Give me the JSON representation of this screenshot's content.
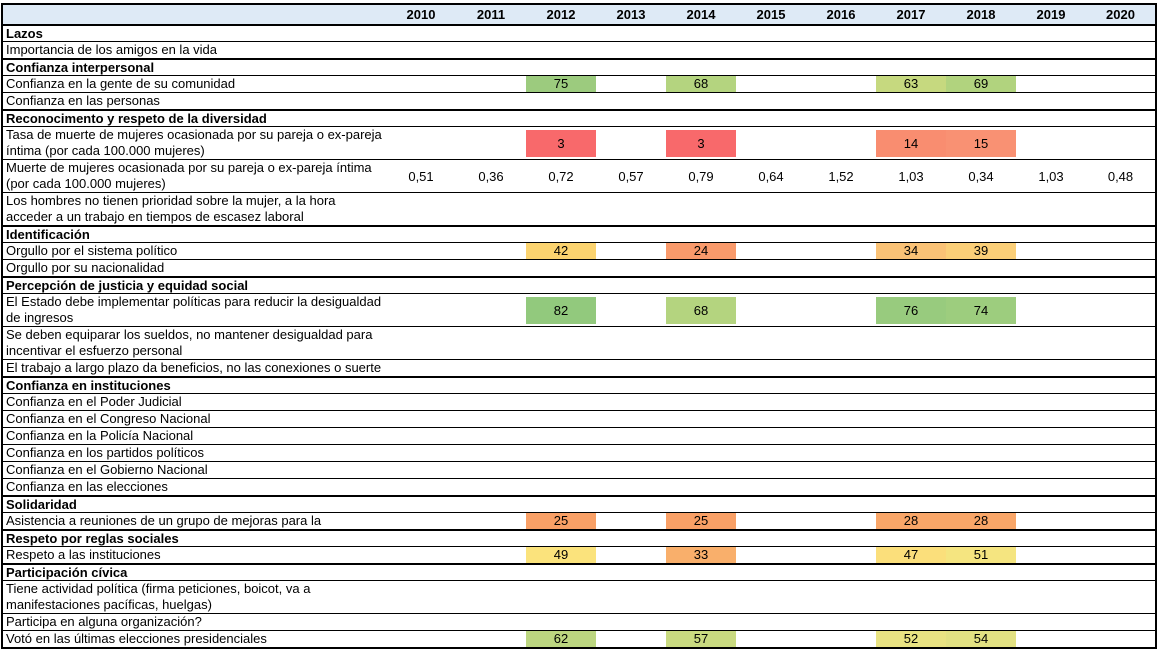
{
  "chart_data": {
    "type": "heatmap",
    "columns": [
      "2010",
      "2011",
      "2012",
      "2013",
      "2014",
      "2015",
      "2016",
      "2017",
      "2018",
      "2019",
      "2020"
    ],
    "color_scale": {
      "min_color": "#F8696B",
      "mid_color": "#FFEB84",
      "max_color": "#63BE7B"
    },
    "header_bg": "#DEEAF6",
    "sections": [
      {
        "title": "Lazos",
        "rows": [
          {
            "label": "Importancia de los amigos en la vida",
            "double": false,
            "values": [
              null,
              null,
              null,
              null,
              null,
              null,
              null,
              null,
              null,
              null,
              null
            ]
          }
        ]
      },
      {
        "title": "Confianza interpersonal",
        "rows": [
          {
            "label": "Confianza en la gente de su comunidad",
            "double": false,
            "values": [
              null,
              null,
              {
                "v": "75",
                "bg": "#9CCB7E"
              },
              null,
              {
                "v": "68",
                "bg": "#B4D47F"
              },
              null,
              null,
              {
                "v": "63",
                "bg": "#C6D97F"
              },
              {
                "v": "69",
                "bg": "#B1D37E"
              },
              null,
              null
            ]
          },
          {
            "label": "Confianza en las personas",
            "double": false,
            "values": [
              null,
              null,
              null,
              null,
              null,
              null,
              null,
              null,
              null,
              null,
              null
            ]
          }
        ]
      },
      {
        "title": "Reconocimento y respeto de la diversidad",
        "rows": [
          {
            "label": "Tasa de muerte de mujeres ocasionada por su pareja o ex-pareja\níntima (por cada 100.000 mujeres)",
            "double": true,
            "values": [
              null,
              null,
              {
                "v": "3",
                "bg": "#F8696B"
              },
              null,
              {
                "v": "3",
                "bg": "#F8696B"
              },
              null,
              null,
              {
                "v": "14",
                "bg": "#F98D70"
              },
              {
                "v": "15",
                "bg": "#F99173"
              },
              null,
              null
            ]
          },
          {
            "label": "Muerte de mujeres ocasionada por su pareja o ex-pareja íntima\n(por cada 100.000 mujeres)",
            "double": true,
            "values": [
              {
                "v": "0,51",
                "bg": null
              },
              {
                "v": "0,36",
                "bg": null
              },
              {
                "v": "0,72",
                "bg": null
              },
              {
                "v": "0,57",
                "bg": null
              },
              {
                "v": "0,79",
                "bg": null
              },
              {
                "v": "0,64",
                "bg": null
              },
              {
                "v": "1,52",
                "bg": null
              },
              {
                "v": "1,03",
                "bg": null
              },
              {
                "v": "0,34",
                "bg": null
              },
              {
                "v": "1,03",
                "bg": null
              },
              {
                "v": "0,48",
                "bg": null
              }
            ]
          },
          {
            "label": "Los hombres no tienen prioridad sobre la mujer, a la hora\nacceder a un trabajo en tiempos de escasez laboral",
            "double": true,
            "values": [
              null,
              null,
              null,
              null,
              null,
              null,
              null,
              null,
              null,
              null,
              null
            ]
          }
        ]
      },
      {
        "title": "Identificación",
        "rows": [
          {
            "label": "Orgullo por el sistema político",
            "double": false,
            "values": [
              null,
              null,
              {
                "v": "42",
                "bg": "#FBD36F"
              },
              null,
              {
                "v": "24",
                "bg": "#F99A6B"
              },
              null,
              null,
              {
                "v": "34",
                "bg": "#FAC276"
              },
              {
                "v": "39",
                "bg": "#FBCF78"
              },
              null,
              null
            ]
          },
          {
            "label": "Orgullo por su nacionalidad",
            "double": false,
            "values": [
              null,
              null,
              null,
              null,
              null,
              null,
              null,
              null,
              null,
              null,
              null
            ]
          }
        ]
      },
      {
        "title": "Percepción de justicia y equidad social",
        "rows": [
          {
            "label": "El Estado debe implementar políticas para reducir la desigualdad\nde ingresos",
            "double": true,
            "values": [
              null,
              null,
              {
                "v": "82",
                "bg": "#92C97D"
              },
              null,
              {
                "v": "68",
                "bg": "#B4D47F"
              },
              null,
              null,
              {
                "v": "76",
                "bg": "#98CB7E"
              },
              {
                "v": "74",
                "bg": "#9DCD7E"
              },
              null,
              null
            ]
          },
          {
            "label": "Se deben equiparar los sueldos, no mantener desigualdad para\nincentivar el esfuerzo personal",
            "double": true,
            "values": [
              null,
              null,
              null,
              null,
              null,
              null,
              null,
              null,
              null,
              null,
              null
            ]
          },
          {
            "label": "El trabajo a largo plazo da beneficios, no las conexiones o suerte",
            "double": false,
            "values": [
              null,
              null,
              null,
              null,
              null,
              null,
              null,
              null,
              null,
              null,
              null
            ]
          }
        ]
      },
      {
        "title": "Confianza en instituciones",
        "rows": [
          {
            "label": "Confianza en el Poder Judicial",
            "double": false,
            "values": [
              null,
              null,
              null,
              null,
              null,
              null,
              null,
              null,
              null,
              null,
              null
            ]
          },
          {
            "label": "Confianza en el Congreso Nacional",
            "double": false,
            "values": [
              null,
              null,
              null,
              null,
              null,
              null,
              null,
              null,
              null,
              null,
              null
            ]
          },
          {
            "label": "Confianza en la Policía Nacional",
            "double": false,
            "values": [
              null,
              null,
              null,
              null,
              null,
              null,
              null,
              null,
              null,
              null,
              null
            ]
          },
          {
            "label": "Confianza en los partidos políticos",
            "double": false,
            "values": [
              null,
              null,
              null,
              null,
              null,
              null,
              null,
              null,
              null,
              null,
              null
            ]
          },
          {
            "label": "Confianza en el Gobierno Nacional",
            "double": false,
            "values": [
              null,
              null,
              null,
              null,
              null,
              null,
              null,
              null,
              null,
              null,
              null
            ]
          },
          {
            "label": "Confianza en las elecciones",
            "double": false,
            "values": [
              null,
              null,
              null,
              null,
              null,
              null,
              null,
              null,
              null,
              null,
              null
            ]
          }
        ]
      },
      {
        "title": "Solidaridad",
        "rows": [
          {
            "label": "Asistencia a reuniones de un grupo de mejoras para la",
            "double": false,
            "values": [
              null,
              null,
              {
                "v": "25",
                "bg": "#F9A066"
              },
              null,
              {
                "v": "25",
                "bg": "#F9A066"
              },
              null,
              null,
              {
                "v": "28",
                "bg": "#F9A668"
              },
              {
                "v": "28",
                "bg": "#F9A668"
              },
              null,
              null
            ]
          }
        ]
      },
      {
        "title": "Respeto por reglas sociales",
        "rows": [
          {
            "label": "Respeto a las instituciones",
            "double": false,
            "values": [
              null,
              null,
              {
                "v": "49",
                "bg": "#FBE37C"
              },
              null,
              {
                "v": "33",
                "bg": "#F9AF6B"
              },
              null,
              null,
              {
                "v": "47",
                "bg": "#FBDF7B"
              },
              {
                "v": "51",
                "bg": "#F5E580"
              },
              null,
              null
            ]
          }
        ]
      },
      {
        "title": "Participación cívica",
        "rows": [
          {
            "label": "Tiene actividad política (firma peticiones, boicot, va a\nmanifestaciones pacíficas, huelgas)",
            "double": true,
            "values": [
              null,
              null,
              null,
              null,
              null,
              null,
              null,
              null,
              null,
              null,
              null
            ]
          },
          {
            "label": "Participa en alguna organización?",
            "double": false,
            "values": [
              null,
              null,
              null,
              null,
              null,
              null,
              null,
              null,
              null,
              null,
              null
            ]
          },
          {
            "label": "Votó en las últimas elecciones presidenciales",
            "double": false,
            "values": [
              null,
              null,
              {
                "v": "62",
                "bg": "#BCD680"
              },
              null,
              {
                "v": "57",
                "bg": "#C9DA80"
              },
              null,
              null,
              {
                "v": "52",
                "bg": "#E9E382"
              },
              {
                "v": "54",
                "bg": "#E2E182"
              },
              null,
              null
            ]
          }
        ]
      }
    ]
  }
}
